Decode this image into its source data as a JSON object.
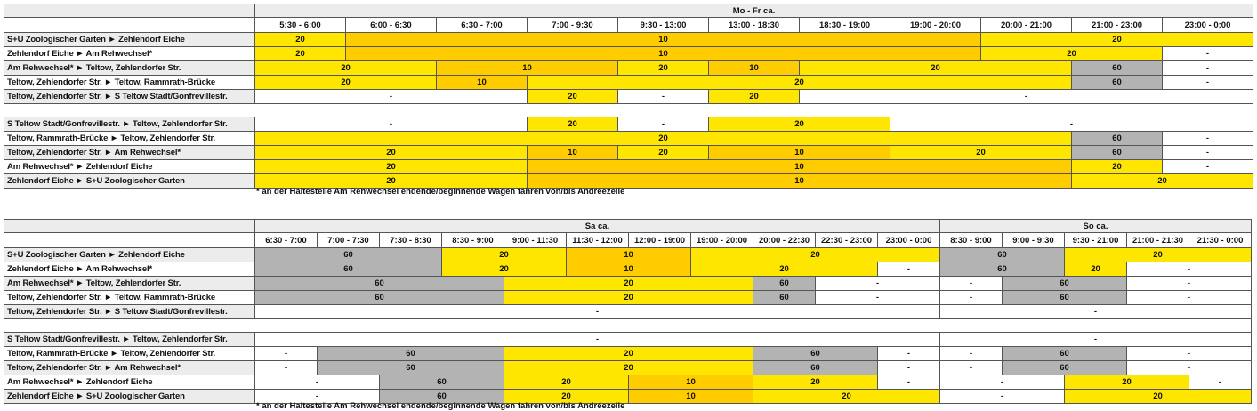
{
  "colors": {
    "20": "#ffe600",
    "10": "#ffcc00",
    "60": "#b3b3b3",
    "-": "#ffffff",
    "label_alt": "#ececec"
  },
  "tables": [
    {
      "groups": [
        {
          "title": "Mo - Fr ca.",
          "span": 11
        }
      ],
      "columns": [
        "5:30 - 6:00",
        "6:00 - 6:30",
        "6:30 - 7:00",
        "7:00 - 9:30",
        "9:30 - 13:00",
        "13:00 - 18:30",
        "18:30 - 19:00",
        "19:00 - 20:00",
        "20:00 - 21:00",
        "21:00 - 23:00",
        "23:00 - 0:00"
      ],
      "rows": [
        {
          "label": "S+U Zoologischer Garten ► Zehlendorf Eiche",
          "segments": [
            [
              1,
              "20"
            ],
            [
              7,
              "10"
            ],
            [
              3,
              "20"
            ]
          ]
        },
        {
          "label": "Zehlendorf Eiche ► Am Rehwechsel*",
          "segments": [
            [
              1,
              "20"
            ],
            [
              7,
              "10"
            ],
            [
              2,
              "20"
            ],
            [
              1,
              "-"
            ]
          ]
        },
        {
          "label": "Am Rehwechsel* ► Teltow, Zehlendorfer Str.",
          "segments": [
            [
              2,
              "20"
            ],
            [
              2,
              "10"
            ],
            [
              1,
              "20"
            ],
            [
              1,
              "10"
            ],
            [
              3,
              "20"
            ],
            [
              1,
              "60"
            ],
            [
              1,
              "-"
            ]
          ]
        },
        {
          "label": "Teltow, Zehlendorfer Str. ► Teltow, Rammrath-Brücke",
          "segments": [
            [
              2,
              "20"
            ],
            [
              1,
              "10"
            ],
            [
              6,
              "20"
            ],
            [
              1,
              "60"
            ],
            [
              1,
              "-"
            ]
          ]
        },
        {
          "label": "Teltow, Zehlendorfer Str. ► S Teltow Stadt/Gonfrevillestr.",
          "segments": [
            [
              3,
              "-"
            ],
            [
              1,
              "20"
            ],
            [
              1,
              "-"
            ],
            [
              1,
              "20"
            ],
            [
              5,
              "-"
            ]
          ]
        },
        {
          "empty": true
        },
        {
          "label": "S Teltow Stadt/Gonfrevillestr. ► Teltow, Zehlendorfer Str.",
          "segments": [
            [
              3,
              "-"
            ],
            [
              1,
              "20"
            ],
            [
              1,
              "-"
            ],
            [
              2,
              "20"
            ],
            [
              4,
              "-"
            ]
          ]
        },
        {
          "label": "Teltow, Rammrath-Brücke ► Teltow, Zehlendorfer Str.",
          "segments": [
            [
              9,
              "20"
            ],
            [
              1,
              "60"
            ],
            [
              1,
              "-"
            ]
          ]
        },
        {
          "label": "Teltow, Zehlendorfer Str. ► Am Rehwechsel*",
          "segments": [
            [
              3,
              "20"
            ],
            [
              1,
              "10"
            ],
            [
              1,
              "20"
            ],
            [
              2,
              "10"
            ],
            [
              2,
              "20"
            ],
            [
              1,
              "60"
            ],
            [
              1,
              "-"
            ]
          ]
        },
        {
          "label": "Am Rehwechsel* ► Zehlendorf Eiche",
          "segments": [
            [
              3,
              "20"
            ],
            [
              6,
              "10"
            ],
            [
              1,
              "20"
            ],
            [
              1,
              "-"
            ]
          ]
        },
        {
          "label": "Zehlendorf Eiche ► S+U Zoologischer Garten",
          "segments": [
            [
              3,
              "20"
            ],
            [
              6,
              "10"
            ],
            [
              2,
              "20"
            ]
          ]
        }
      ],
      "footnote": "* an der Haltestelle Am Rehwechsel endende/beginnende Wagen fahren von/bis Andréezeile"
    },
    {
      "groups": [
        {
          "title": "Sa ca.",
          "span": 11
        },
        {
          "title": "So ca.",
          "span": 5
        }
      ],
      "columns": [
        "6:30 - 7:00",
        "7:00 - 7:30",
        "7:30 - 8:30",
        "8:30 - 9:00",
        "9:00 - 11:30",
        "11:30 - 12:00",
        "12:00 - 19:00",
        "19:00 - 20:00",
        "20:00 - 22:30",
        "22:30 - 23:00",
        "23:00 - 0:00",
        "8:30 - 9:00",
        "9:00 - 9:30",
        "9:30 - 21:00",
        "21:00 - 21:30",
        "21:30 - 0:00"
      ],
      "rows": [
        {
          "label": "S+U Zoologischer Garten ► Zehlendorf Eiche",
          "segments": [
            [
              3,
              "60"
            ],
            [
              2,
              "20"
            ],
            [
              2,
              "10"
            ],
            [
              4,
              "20"
            ],
            [
              2,
              "60"
            ],
            [
              3,
              "20"
            ]
          ]
        },
        {
          "label": "Zehlendorf Eiche ► Am Rehwechsel*",
          "segments": [
            [
              3,
              "60"
            ],
            [
              2,
              "20"
            ],
            [
              2,
              "10"
            ],
            [
              3,
              "20"
            ],
            [
              1,
              "-"
            ],
            [
              2,
              "60"
            ],
            [
              1,
              "20"
            ],
            [
              2,
              "-"
            ]
          ]
        },
        {
          "label": "Am Rehwechsel* ► Teltow, Zehlendorfer Str.",
          "segments": [
            [
              4,
              "60"
            ],
            [
              4,
              "20"
            ],
            [
              1,
              "60"
            ],
            [
              2,
              "-"
            ],
            [
              1,
              "-"
            ],
            [
              2,
              "60"
            ],
            [
              2,
              "-"
            ]
          ]
        },
        {
          "label": "Teltow, Zehlendorfer Str. ► Teltow, Rammrath-Brücke",
          "segments": [
            [
              4,
              "60"
            ],
            [
              4,
              "20"
            ],
            [
              1,
              "60"
            ],
            [
              2,
              "-"
            ],
            [
              1,
              "-"
            ],
            [
              2,
              "60"
            ],
            [
              2,
              "-"
            ]
          ]
        },
        {
          "label": "Teltow, Zehlendorfer Str. ► S Teltow Stadt/Gonfrevillestr.",
          "segments": [
            [
              11,
              "-"
            ],
            [
              5,
              "-"
            ]
          ]
        },
        {
          "empty": true
        },
        {
          "label": "S Teltow Stadt/Gonfrevillestr. ► Teltow, Zehlendorfer Str.",
          "segments": [
            [
              11,
              "-"
            ],
            [
              5,
              "-"
            ]
          ]
        },
        {
          "label": "Teltow, Rammrath-Brücke ► Teltow, Zehlendorfer Str.",
          "segments": [
            [
              1,
              "-"
            ],
            [
              3,
              "60"
            ],
            [
              4,
              "20"
            ],
            [
              2,
              "60"
            ],
            [
              1,
              "-"
            ],
            [
              1,
              "-"
            ],
            [
              2,
              "60"
            ],
            [
              2,
              "-"
            ]
          ]
        },
        {
          "label": "Teltow, Zehlendorfer Str. ► Am Rehwechsel*",
          "segments": [
            [
              1,
              "-"
            ],
            [
              3,
              "60"
            ],
            [
              4,
              "20"
            ],
            [
              2,
              "60"
            ],
            [
              1,
              "-"
            ],
            [
              1,
              "-"
            ],
            [
              2,
              "60"
            ],
            [
              2,
              "-"
            ]
          ]
        },
        {
          "label": "Am Rehwechsel* ► Zehlendorf Eiche",
          "segments": [
            [
              2,
              "-"
            ],
            [
              2,
              "60"
            ],
            [
              2,
              "20"
            ],
            [
              2,
              "10"
            ],
            [
              2,
              "20"
            ],
            [
              1,
              "-"
            ],
            [
              2,
              "-"
            ],
            [
              2,
              "20"
            ],
            [
              1,
              "-"
            ]
          ]
        },
        {
          "label": "Zehlendorf Eiche ► S+U Zoologischer Garten",
          "segments": [
            [
              2,
              "-"
            ],
            [
              2,
              "60"
            ],
            [
              2,
              "20"
            ],
            [
              2,
              "10"
            ],
            [
              3,
              "20"
            ],
            [
              2,
              "-"
            ],
            [
              3,
              "20"
            ]
          ]
        }
      ],
      "footnote": "* an der Haltestelle Am Rehwechsel endende/beginnende Wagen fahren von/bis Andréezeile"
    }
  ]
}
